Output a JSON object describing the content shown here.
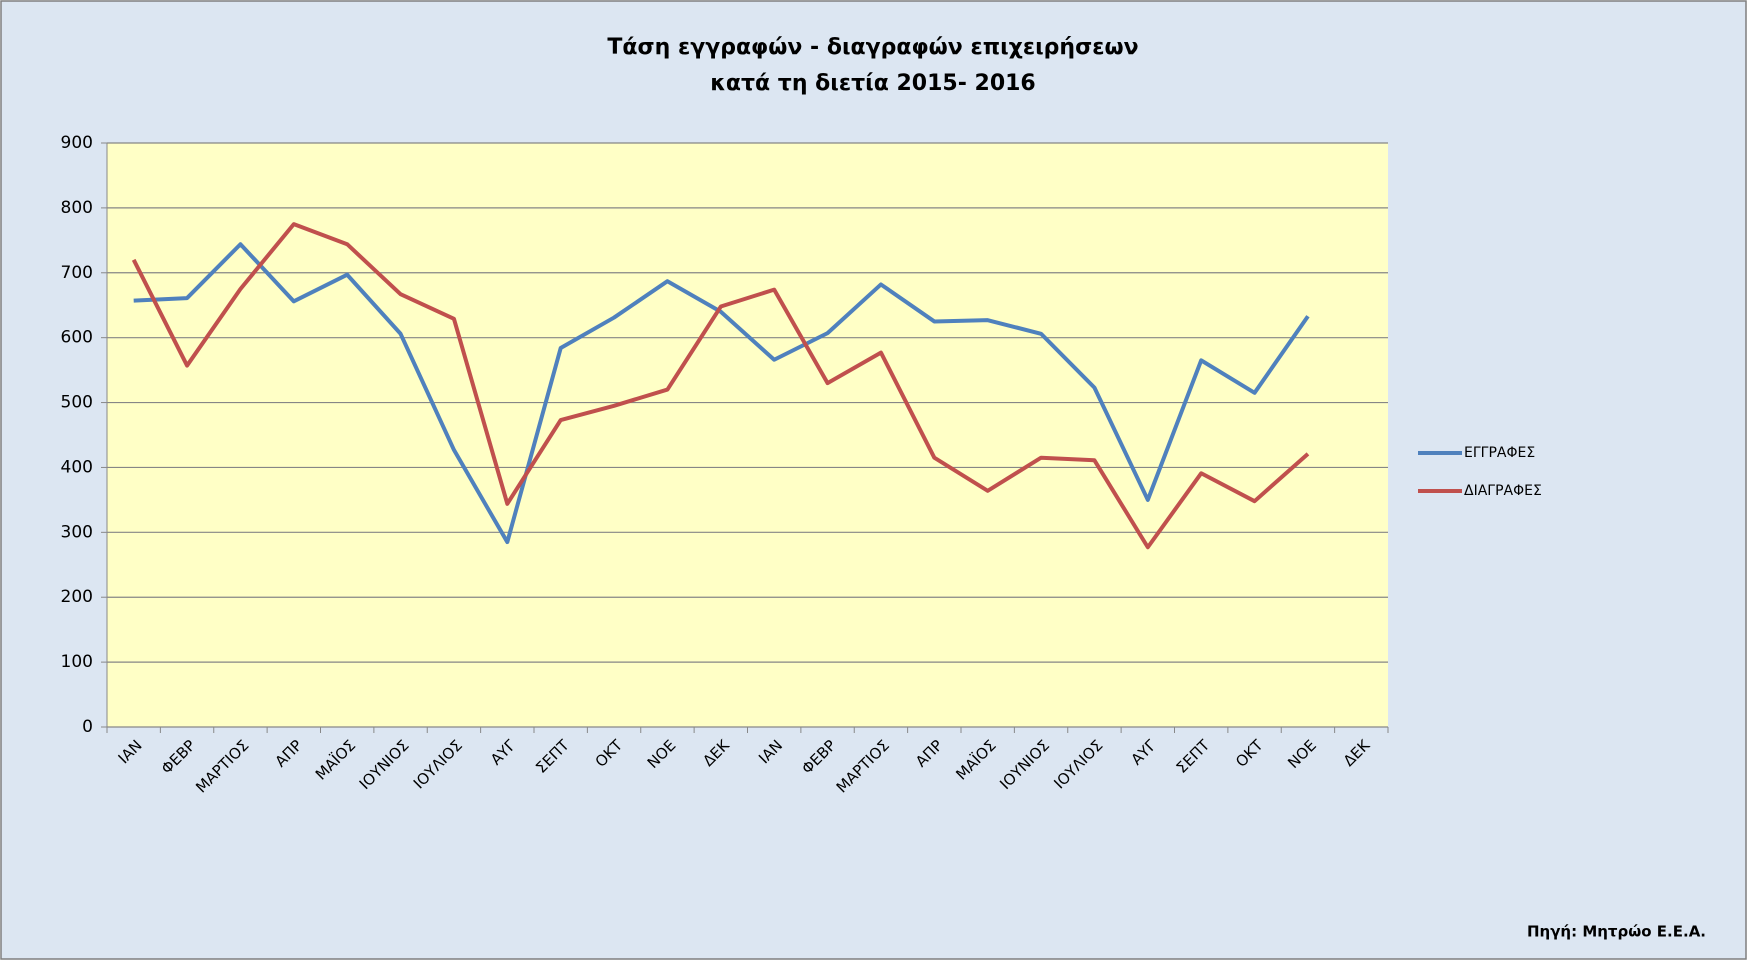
{
  "chart_data": {
    "type": "line",
    "title": [
      "Τάση εγγραφών - διαγραφών επιχειρήσεων",
      "κατά τη διετία 2015- 2016"
    ],
    "annotation": "Πηγή: Μητρώο Ε.Ε.Α.",
    "categories": [
      "ΙΑΝ",
      "ΦΕΒΡ",
      "ΜΑΡΤΙΟΣ",
      "ΑΠΡ",
      "ΜΑΪΟΣ",
      "ΙΟΥΝΙΟΣ",
      "ΙΟΥΛΙΟΣ",
      "ΑΥΓ",
      "ΣΕΠΤ",
      "ΟΚΤ",
      "ΝΟΕ",
      "ΔΕΚ",
      "ΙΑΝ",
      "ΦΕΒΡ",
      "ΜΑΡΤΙΟΣ",
      "ΑΠΡ",
      "ΜΑΪΟΣ",
      "ΙΟΥΝΙΟΣ",
      "ΙΟΥΛΙΟΣ",
      "ΑΥΓ",
      "ΣΕΠΤ",
      "ΟΚΤ",
      "ΝΟΕ",
      "ΔΕΚ"
    ],
    "series": [
      {
        "name": "ΕΓΓΡΑΦΕΣ",
        "color": "#4f81bd",
        "values": [
          657,
          661,
          744,
          656,
          697,
          606,
          427,
          285,
          584,
          631,
          687,
          640,
          566,
          607,
          682,
          625,
          627,
          606,
          523,
          350,
          565,
          515,
          633,
          null
        ]
      },
      {
        "name": "ΔΙΑΓΡΑΦΕΣ",
        "color": "#c0504d",
        "values": [
          720,
          557,
          675,
          775,
          744,
          667,
          629,
          344,
          473,
          495,
          520,
          648,
          674,
          530,
          577,
          415,
          364,
          415,
          411,
          277,
          391,
          348,
          421,
          null
        ]
      }
    ],
    "ylim": [
      0,
      900
    ],
    "yticks": [
      0,
      100,
      200,
      300,
      400,
      500,
      600,
      700,
      800,
      900
    ],
    "grid": true,
    "legend": "right"
  }
}
